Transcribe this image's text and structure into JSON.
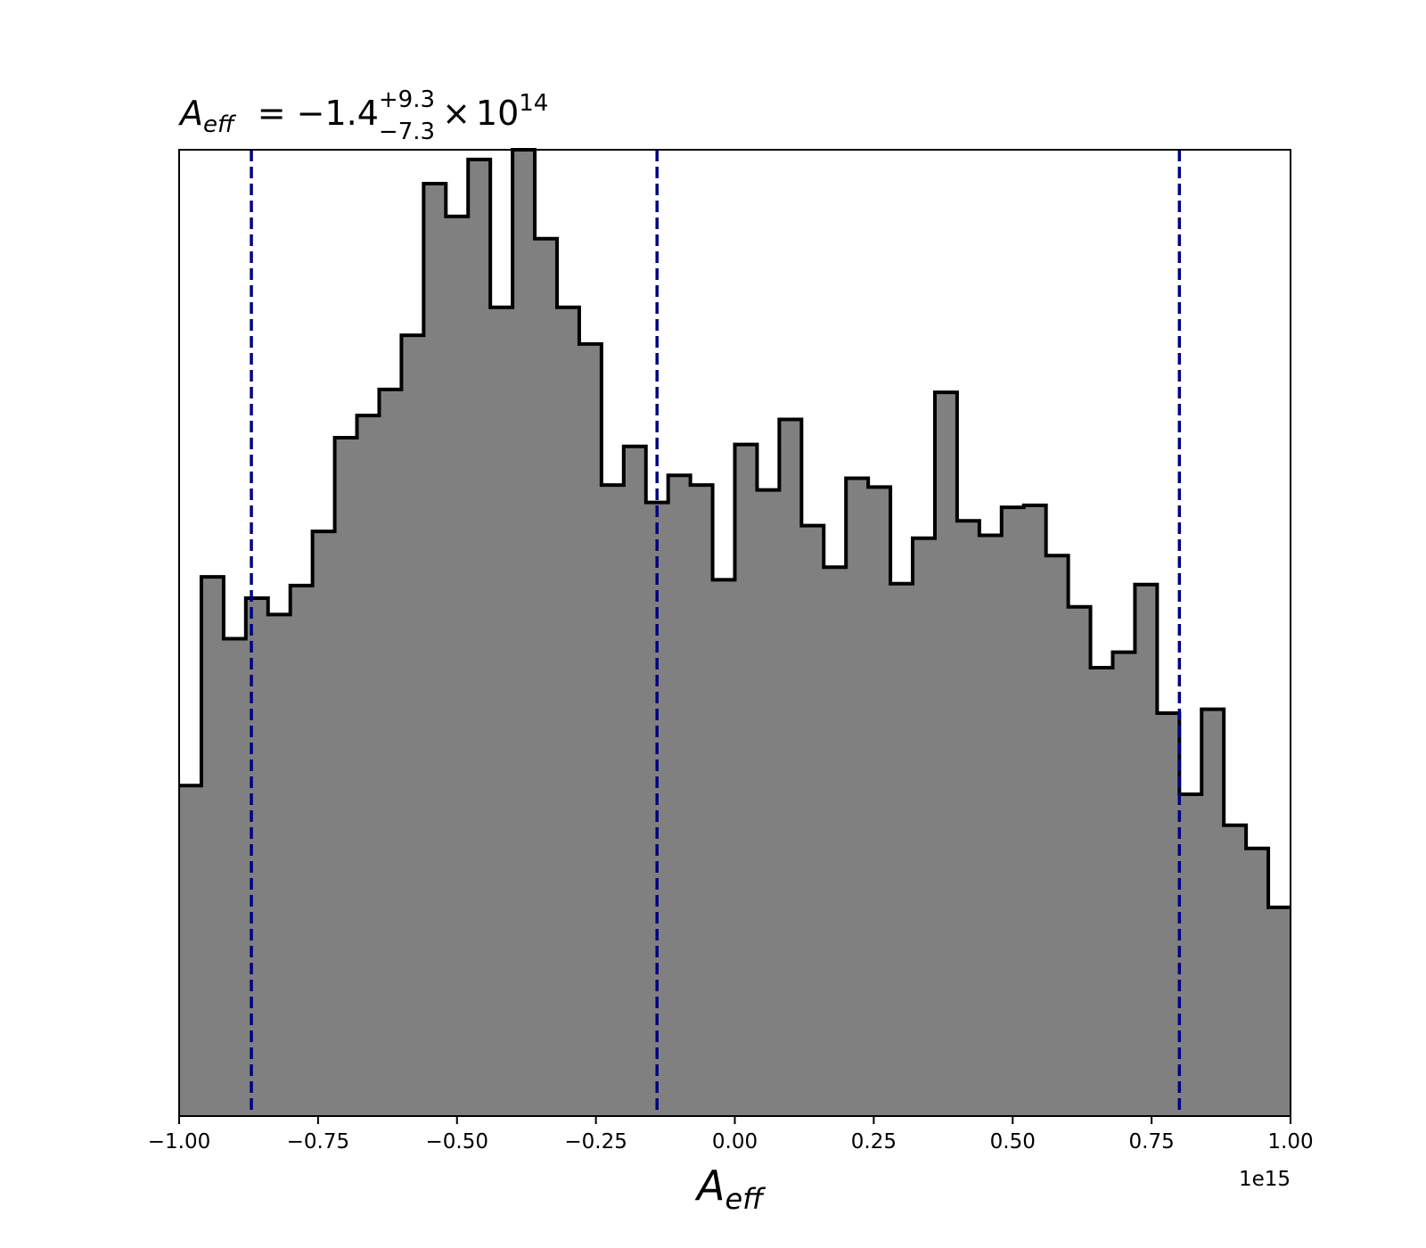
{
  "chart_data": {
    "type": "histogram",
    "title": {
      "variable": "A",
      "variable_sub": "eff",
      "equals": "=",
      "median": "−1.4",
      "upper": "+9.3",
      "lower": "−7.3",
      "times": "×",
      "base": "10",
      "exponent": "14"
    },
    "xlabel": {
      "variable": "A",
      "variable_sub": "eff"
    },
    "x_offset_label": "1e15",
    "xlim": [
      -1.0,
      1.0
    ],
    "x_scale_factor": 1000000000000000.0,
    "xticks": [
      {
        "value": -1.0,
        "label": "−1.00"
      },
      {
        "value": -0.75,
        "label": "−0.75"
      },
      {
        "value": -0.5,
        "label": "−0.50"
      },
      {
        "value": -0.25,
        "label": "−0.25"
      },
      {
        "value": 0.0,
        "label": "0.00"
      },
      {
        "value": 0.25,
        "label": "0.25"
      },
      {
        "value": 0.5,
        "label": "0.50"
      },
      {
        "value": 0.75,
        "label": "0.75"
      },
      {
        "value": 1.0,
        "label": "1.00"
      }
    ],
    "ylim": [
      0,
      1.0
    ],
    "y_axis_visible": false,
    "bin_edges": [
      -1.0,
      -0.96,
      -0.92,
      -0.88,
      -0.84,
      -0.8,
      -0.76,
      -0.72,
      -0.68,
      -0.64,
      -0.6,
      -0.56,
      -0.52,
      -0.48,
      -0.44,
      -0.4,
      -0.36,
      -0.32,
      -0.28,
      -0.24,
      -0.2,
      -0.16,
      -0.12,
      -0.08,
      -0.04,
      0.0,
      0.04,
      0.08,
      0.12,
      0.16,
      0.2,
      0.24,
      0.28,
      0.32,
      0.36,
      0.4,
      0.44,
      0.48,
      0.52,
      0.56,
      0.6,
      0.64,
      0.68,
      0.72,
      0.76,
      0.8,
      0.84,
      0.88,
      0.92,
      0.96,
      1.0
    ],
    "bin_heights": [
      0.342,
      0.558,
      0.494,
      0.536,
      0.519,
      0.549,
      0.605,
      0.702,
      0.725,
      0.752,
      0.808,
      0.965,
      0.931,
      0.99,
      0.837,
      1.0,
      0.908,
      0.837,
      0.799,
      0.653,
      0.693,
      0.635,
      0.663,
      0.653,
      0.555,
      0.695,
      0.648,
      0.721,
      0.611,
      0.568,
      0.66,
      0.651,
      0.551,
      0.598,
      0.749,
      0.616,
      0.601,
      0.63,
      0.632,
      0.58,
      0.527,
      0.464,
      0.48,
      0.55,
      0.417,
      0.333,
      0.421,
      0.301,
      0.277,
      0.216
    ],
    "fill_color": "#808080",
    "edge_color": "#000000",
    "quantile_lines": [
      {
        "value": -0.87,
        "color": "#000080"
      },
      {
        "value": -0.14,
        "color": "#000080"
      },
      {
        "value": 0.8,
        "color": "#000080"
      }
    ],
    "grid": false,
    "legend": "none"
  }
}
